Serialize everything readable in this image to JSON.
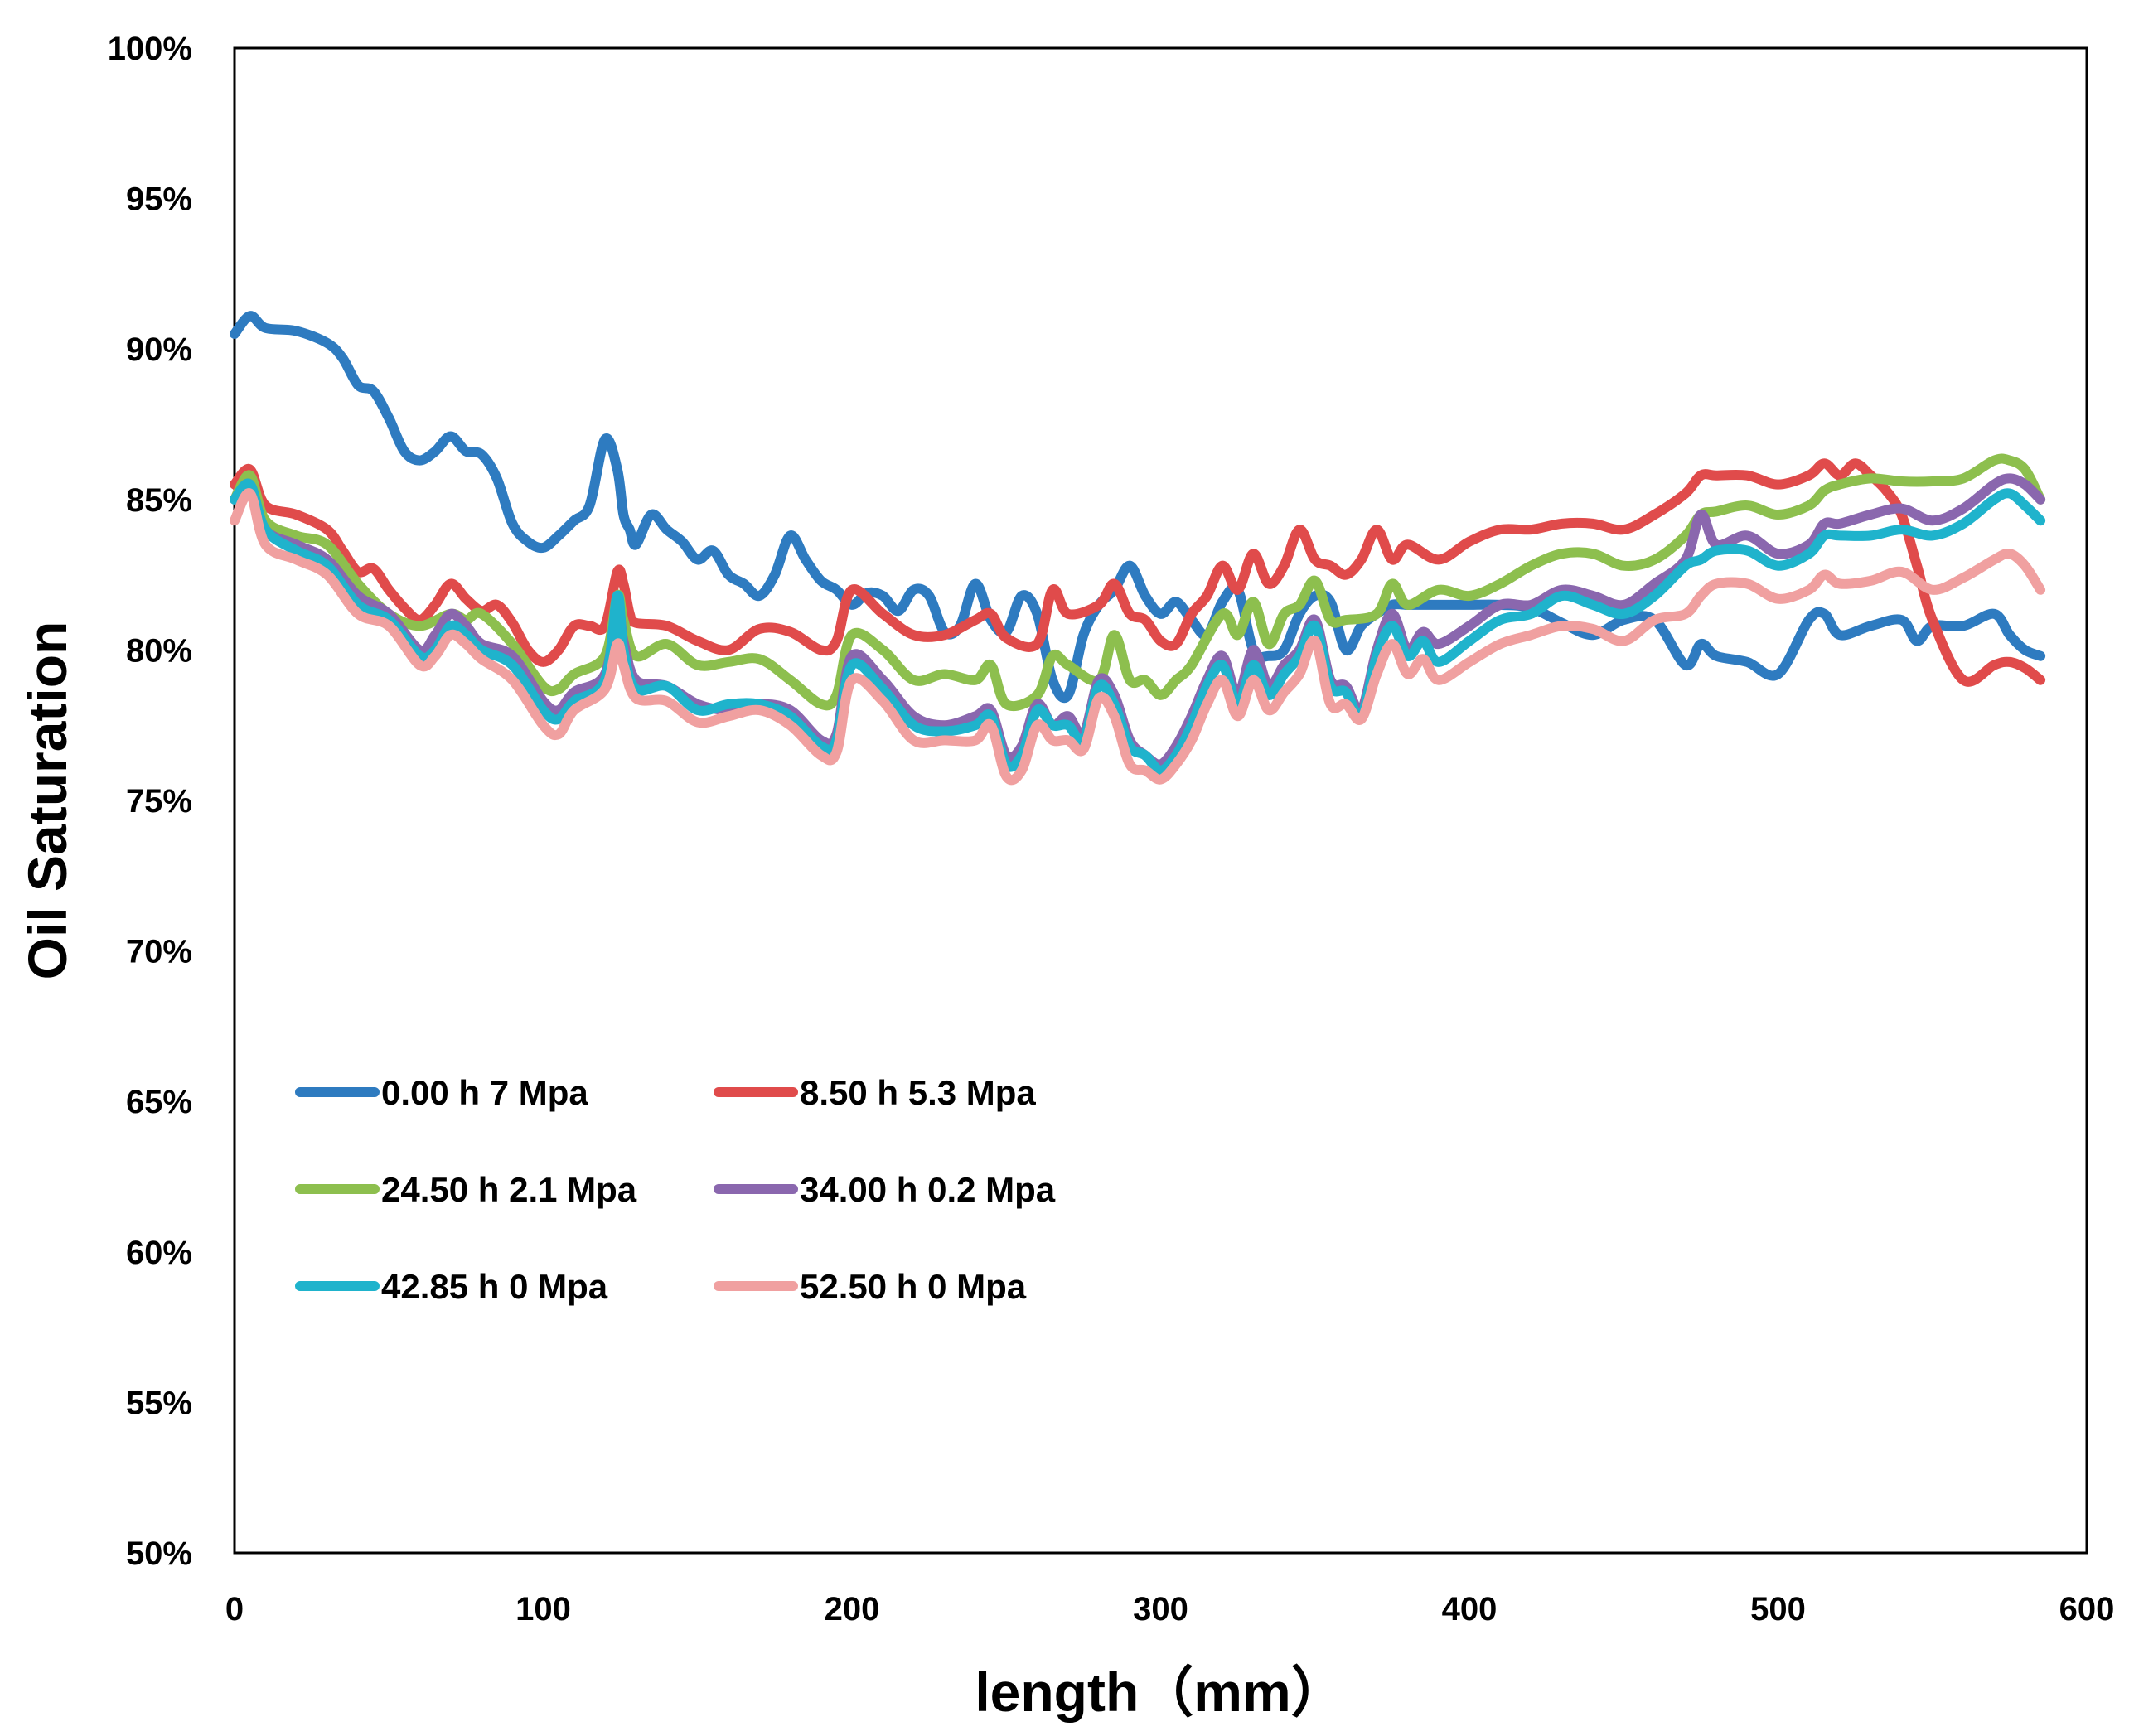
{
  "chart_data": {
    "type": "line",
    "title": "",
    "xlabel": "length（mm）",
    "ylabel": "Oil Saturation",
    "xlim": [
      0,
      600
    ],
    "ylim": [
      0.5,
      1.0
    ],
    "x_ticks": [
      "0",
      "100",
      "200",
      "300",
      "400",
      "500",
      "600"
    ],
    "y_ticks": [
      "50%",
      "55%",
      "60%",
      "65%",
      "70%",
      "75%",
      "80%",
      "85%",
      "90%",
      "95%",
      "100%"
    ],
    "grid": false,
    "legend_position": "lower-left",
    "series": [
      {
        "name": "0.00 h 7 Mpa",
        "color": "#2E7BC0",
        "x": [
          0,
          5,
          10,
          20,
          30,
          35,
          40,
          45,
          50,
          55,
          60,
          65,
          70,
          75,
          80,
          85,
          90,
          95,
          100,
          105,
          110,
          115,
          120,
          124,
          126,
          128,
          130,
          135,
          140,
          145,
          150,
          155,
          160,
          165,
          170,
          175,
          180,
          185,
          190,
          195,
          200,
          205,
          210,
          215,
          220,
          225,
          230,
          235,
          240,
          245,
          250,
          255,
          260,
          265,
          270,
          275,
          280,
          285,
          290,
          295,
          300,
          305,
          310,
          315,
          320,
          325,
          330,
          335,
          340,
          345,
          350,
          355,
          360,
          365,
          370,
          375,
          380,
          385,
          390,
          395,
          400,
          410,
          420,
          430,
          440,
          450,
          460,
          470,
          475,
          480,
          490,
          500,
          510,
          515,
          520,
          530,
          540,
          545,
          550,
          560,
          570,
          575,
          580,
          585
        ],
        "y": [
          0.905,
          0.911,
          0.907,
          0.906,
          0.902,
          0.897,
          0.888,
          0.886,
          0.877,
          0.866,
          0.863,
          0.866,
          0.871,
          0.866,
          0.865,
          0.857,
          0.842,
          0.836,
          0.834,
          0.838,
          0.843,
          0.848,
          0.87,
          0.86,
          0.845,
          0.84,
          0.835,
          0.845,
          0.84,
          0.836,
          0.83,
          0.833,
          0.825,
          0.822,
          0.818,
          0.825,
          0.838,
          0.83,
          0.823,
          0.82,
          0.815,
          0.819,
          0.818,
          0.813,
          0.82,
          0.818,
          0.806,
          0.808,
          0.822,
          0.81,
          0.806,
          0.818,
          0.812,
          0.79,
          0.785,
          0.805,
          0.815,
          0.82,
          0.828,
          0.818,
          0.812,
          0.816,
          0.81,
          0.805,
          0.816,
          0.82,
          0.8,
          0.798,
          0.8,
          0.812,
          0.818,
          0.816,
          0.8,
          0.808,
          0.812,
          0.815,
          0.815,
          0.815,
          0.815,
          0.815,
          0.815,
          0.815,
          0.814,
          0.809,
          0.805,
          0.81,
          0.81,
          0.795,
          0.802,
          0.798,
          0.796,
          0.792,
          0.81,
          0.812,
          0.805,
          0.808,
          0.81,
          0.803,
          0.808,
          0.808,
          0.812,
          0.805,
          0.8,
          0.798
        ]
      },
      {
        "name": "8.50 h 5.3 Mpa",
        "color": "#E04B4B",
        "x": [
          0,
          5,
          10,
          20,
          30,
          35,
          40,
          45,
          50,
          55,
          60,
          65,
          70,
          75,
          80,
          85,
          90,
          95,
          100,
          105,
          110,
          115,
          120,
          124,
          126,
          128,
          130,
          140,
          150,
          160,
          170,
          180,
          190,
          195,
          200,
          210,
          220,
          230,
          240,
          245,
          250,
          260,
          265,
          270,
          280,
          285,
          290,
          295,
          300,
          305,
          310,
          315,
          320,
          325,
          330,
          335,
          340,
          345,
          350,
          355,
          360,
          365,
          370,
          375,
          380,
          390,
          400,
          410,
          420,
          430,
          440,
          450,
          460,
          470,
          475,
          480,
          490,
          500,
          510,
          515,
          520,
          525,
          530,
          535,
          540,
          545,
          550,
          560,
          570,
          575,
          580,
          585
        ],
        "y": [
          0.855,
          0.86,
          0.848,
          0.845,
          0.84,
          0.833,
          0.826,
          0.827,
          0.82,
          0.814,
          0.81,
          0.815,
          0.822,
          0.817,
          0.813,
          0.815,
          0.809,
          0.8,
          0.796,
          0.8,
          0.808,
          0.808,
          0.808,
          0.826,
          0.822,
          0.812,
          0.809,
          0.808,
          0.803,
          0.8,
          0.807,
          0.806,
          0.8,
          0.803,
          0.82,
          0.812,
          0.805,
          0.805,
          0.81,
          0.812,
          0.804,
          0.802,
          0.82,
          0.812,
          0.815,
          0.822,
          0.812,
          0.81,
          0.803,
          0.802,
          0.812,
          0.818,
          0.828,
          0.82,
          0.832,
          0.822,
          0.828,
          0.84,
          0.83,
          0.828,
          0.825,
          0.83,
          0.84,
          0.83,
          0.835,
          0.83,
          0.836,
          0.84,
          0.84,
          0.842,
          0.842,
          0.84,
          0.845,
          0.852,
          0.858,
          0.858,
          0.858,
          0.855,
          0.858,
          0.862,
          0.858,
          0.862,
          0.858,
          0.853,
          0.845,
          0.828,
          0.81,
          0.79,
          0.795,
          0.796,
          0.794,
          0.79
        ]
      },
      {
        "name": "24.50 h 2.1 Mpa",
        "color": "#8DBF4E",
        "x": [
          0,
          5,
          10,
          20,
          30,
          40,
          50,
          60,
          70,
          75,
          80,
          90,
          100,
          105,
          110,
          120,
          124,
          126,
          130,
          140,
          150,
          160,
          170,
          180,
          190,
          195,
          200,
          210,
          220,
          230,
          240,
          245,
          250,
          260,
          265,
          270,
          280,
          285,
          290,
          295,
          300,
          305,
          310,
          320,
          325,
          330,
          335,
          340,
          345,
          350,
          355,
          360,
          370,
          375,
          380,
          390,
          400,
          410,
          420,
          430,
          440,
          450,
          460,
          470,
          475,
          480,
          490,
          500,
          510,
          515,
          520,
          530,
          540,
          550,
          560,
          570,
          575,
          580,
          585
        ],
        "y": [
          0.85,
          0.858,
          0.843,
          0.838,
          0.835,
          0.822,
          0.812,
          0.808,
          0.812,
          0.81,
          0.812,
          0.802,
          0.788,
          0.787,
          0.792,
          0.798,
          0.818,
          0.81,
          0.798,
          0.802,
          0.795,
          0.796,
          0.797,
          0.79,
          0.782,
          0.785,
          0.805,
          0.8,
          0.79,
          0.792,
          0.79,
          0.795,
          0.782,
          0.785,
          0.798,
          0.795,
          0.79,
          0.805,
          0.79,
          0.79,
          0.785,
          0.79,
          0.795,
          0.812,
          0.805,
          0.816,
          0.802,
          0.812,
          0.815,
          0.823,
          0.81,
          0.81,
          0.812,
          0.822,
          0.815,
          0.82,
          0.818,
          0.822,
          0.828,
          0.832,
          0.832,
          0.828,
          0.83,
          0.838,
          0.845,
          0.846,
          0.848,
          0.845,
          0.848,
          0.853,
          0.855,
          0.857,
          0.856,
          0.856,
          0.857,
          0.863,
          0.863,
          0.86,
          0.85
        ]
      },
      {
        "name": "34.00 h 0.2 Mpa",
        "color": "#8A67AE",
        "x": [
          0,
          5,
          10,
          20,
          30,
          40,
          50,
          60,
          65,
          70,
          75,
          80,
          90,
          100,
          105,
          110,
          120,
          124,
          126,
          130,
          140,
          150,
          160,
          170,
          180,
          190,
          195,
          200,
          210,
          220,
          230,
          240,
          245,
          250,
          255,
          260,
          265,
          270,
          275,
          280,
          285,
          290,
          295,
          300,
          305,
          310,
          315,
          320,
          325,
          330,
          335,
          340,
          345,
          350,
          355,
          360,
          365,
          370,
          375,
          380,
          385,
          390,
          400,
          410,
          420,
          430,
          440,
          450,
          460,
          470,
          475,
          480,
          490,
          500,
          510,
          515,
          520,
          530,
          540,
          550,
          560,
          570,
          575,
          580,
          585
        ],
        "y": [
          0.85,
          0.855,
          0.84,
          0.835,
          0.83,
          0.818,
          0.812,
          0.8,
          0.805,
          0.812,
          0.808,
          0.802,
          0.798,
          0.783,
          0.78,
          0.786,
          0.792,
          0.815,
          0.803,
          0.79,
          0.788,
          0.782,
          0.78,
          0.782,
          0.78,
          0.77,
          0.772,
          0.798,
          0.79,
          0.778,
          0.775,
          0.778,
          0.78,
          0.765,
          0.768,
          0.782,
          0.775,
          0.778,
          0.772,
          0.79,
          0.785,
          0.77,
          0.765,
          0.762,
          0.768,
          0.778,
          0.79,
          0.798,
          0.785,
          0.8,
          0.788,
          0.795,
          0.8,
          0.81,
          0.79,
          0.788,
          0.78,
          0.8,
          0.812,
          0.8,
          0.806,
          0.802,
          0.808,
          0.815,
          0.815,
          0.82,
          0.818,
          0.815,
          0.822,
          0.83,
          0.845,
          0.835,
          0.838,
          0.832,
          0.835,
          0.842,
          0.842,
          0.845,
          0.847,
          0.843,
          0.847,
          0.855,
          0.857,
          0.855,
          0.85
        ]
      },
      {
        "name": "42.85 h 0 Mpa",
        "color": "#1FB3CC",
        "x": [
          0,
          5,
          10,
          20,
          30,
          40,
          50,
          60,
          65,
          70,
          75,
          80,
          90,
          100,
          105,
          110,
          120,
          124,
          126,
          130,
          140,
          150,
          160,
          170,
          180,
          190,
          195,
          200,
          210,
          220,
          230,
          240,
          245,
          250,
          255,
          260,
          265,
          270,
          275,
          280,
          285,
          290,
          295,
          300,
          305,
          310,
          315,
          320,
          325,
          330,
          335,
          340,
          345,
          350,
          355,
          360,
          365,
          370,
          375,
          380,
          385,
          390,
          400,
          410,
          420,
          430,
          440,
          450,
          460,
          470,
          475,
          480,
          490,
          500,
          510,
          515,
          520,
          530,
          540,
          550,
          560,
          570,
          575,
          580,
          585
        ],
        "y": [
          0.85,
          0.855,
          0.84,
          0.833,
          0.828,
          0.815,
          0.81,
          0.798,
          0.8,
          0.808,
          0.805,
          0.8,
          0.795,
          0.78,
          0.777,
          0.783,
          0.79,
          0.818,
          0.8,
          0.787,
          0.788,
          0.78,
          0.782,
          0.782,
          0.778,
          0.768,
          0.77,
          0.795,
          0.787,
          0.775,
          0.773,
          0.775,
          0.778,
          0.762,
          0.765,
          0.78,
          0.775,
          0.775,
          0.77,
          0.788,
          0.782,
          0.768,
          0.765,
          0.76,
          0.765,
          0.775,
          0.788,
          0.795,
          0.782,
          0.795,
          0.785,
          0.792,
          0.798,
          0.808,
          0.788,
          0.786,
          0.778,
          0.798,
          0.808,
          0.798,
          0.803,
          0.796,
          0.803,
          0.81,
          0.812,
          0.818,
          0.815,
          0.812,
          0.818,
          0.828,
          0.83,
          0.833,
          0.833,
          0.828,
          0.832,
          0.838,
          0.838,
          0.838,
          0.84,
          0.838,
          0.842,
          0.85,
          0.852,
          0.848,
          0.843
        ]
      },
      {
        "name": "52.50 h 0 Mpa",
        "color": "#F0A0A0",
        "x": [
          0,
          5,
          10,
          20,
          30,
          40,
          50,
          60,
          65,
          70,
          75,
          80,
          90,
          100,
          105,
          110,
          120,
          124,
          126,
          130,
          140,
          150,
          160,
          170,
          180,
          190,
          195,
          200,
          210,
          220,
          230,
          240,
          245,
          250,
          255,
          260,
          265,
          270,
          275,
          280,
          285,
          290,
          295,
          300,
          305,
          310,
          315,
          320,
          325,
          330,
          335,
          340,
          345,
          350,
          355,
          360,
          365,
          370,
          375,
          380,
          385,
          390,
          400,
          410,
          420,
          430,
          440,
          450,
          460,
          470,
          475,
          480,
          490,
          500,
          510,
          515,
          520,
          530,
          540,
          550,
          560,
          570,
          575,
          580,
          585
        ],
        "y": [
          0.843,
          0.852,
          0.835,
          0.83,
          0.825,
          0.812,
          0.808,
          0.795,
          0.798,
          0.805,
          0.802,
          0.797,
          0.79,
          0.775,
          0.772,
          0.78,
          0.787,
          0.802,
          0.795,
          0.784,
          0.783,
          0.776,
          0.778,
          0.78,
          0.775,
          0.765,
          0.766,
          0.79,
          0.783,
          0.77,
          0.77,
          0.77,
          0.775,
          0.758,
          0.76,
          0.775,
          0.77,
          0.77,
          0.767,
          0.784,
          0.778,
          0.762,
          0.76,
          0.757,
          0.762,
          0.77,
          0.782,
          0.79,
          0.778,
          0.79,
          0.78,
          0.786,
          0.792,
          0.803,
          0.782,
          0.782,
          0.777,
          0.792,
          0.802,
          0.792,
          0.797,
          0.79,
          0.796,
          0.802,
          0.805,
          0.808,
          0.807,
          0.803,
          0.81,
          0.812,
          0.818,
          0.822,
          0.822,
          0.817,
          0.82,
          0.825,
          0.822,
          0.823,
          0.826,
          0.82,
          0.824,
          0.83,
          0.832,
          0.828,
          0.82
        ]
      }
    ]
  }
}
